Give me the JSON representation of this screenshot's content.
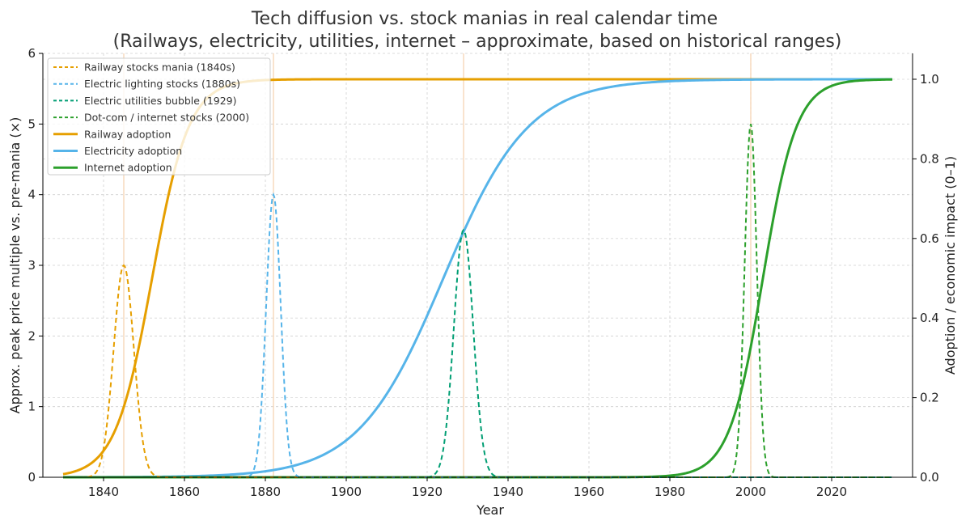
{
  "chart_data": {
    "type": "line",
    "title_line1": "Tech diffusion vs. stock manias in real calendar time",
    "title_line2": "(Railways, electricity, utilities, internet – approximate, based on historical ranges)",
    "xlabel": "Year",
    "ylabel_left": "Approx. peak price multiple vs. pre-mania (×)",
    "ylabel_right": "Adoption / economic impact (0–1)",
    "xlim": [
      1825,
      2040
    ],
    "ylim_left": [
      0,
      6
    ],
    "ylim_right": [
      0,
      1.065
    ],
    "x_ticks": [
      1840,
      1860,
      1880,
      1900,
      1920,
      1940,
      1960,
      1980,
      2000,
      2020
    ],
    "y_ticks_left": [
      0,
      1,
      2,
      3,
      4,
      5,
      6
    ],
    "y_ticks_right": [
      0.0,
      0.2,
      0.4,
      0.6,
      0.8,
      1.0
    ],
    "x_tick_labels": [
      "1840",
      "1860",
      "1880",
      "1900",
      "1920",
      "1940",
      "1960",
      "1980",
      "2000",
      "2020"
    ],
    "y_tick_labels_left": [
      "0",
      "1",
      "2",
      "3",
      "4",
      "5",
      "6"
    ],
    "y_tick_labels_right": [
      "0.0",
      "0.2",
      "0.4",
      "0.6",
      "0.8",
      "1.0"
    ],
    "grid": true,
    "legend_position": "upper-left",
    "mania_series": [
      {
        "name": "Railway stocks mania (1840s)",
        "color": "#E69F00",
        "peak_year": 1845,
        "peak_multiple": 3.0,
        "width_years": 2.5,
        "axis": "left",
        "style": "dashed"
      },
      {
        "name": "Electric lighting stocks (1880s)",
        "color": "#56B4E9",
        "peak_year": 1882,
        "peak_multiple": 4.0,
        "width_years": 1.8,
        "axis": "left",
        "style": "dashed"
      },
      {
        "name": "Electric utilities bubble (1929)",
        "color": "#009E73",
        "peak_year": 1929,
        "peak_multiple": 3.5,
        "width_years": 2.4,
        "axis": "left",
        "style": "dashed"
      },
      {
        "name": "Dot-com / internet stocks (2000)",
        "color": "#2CA02C",
        "peak_year": 2000,
        "peak_multiple": 5.0,
        "width_years": 1.5,
        "axis": "left",
        "style": "dashed"
      }
    ],
    "adoption_series": [
      {
        "name": "Railway adoption",
        "color": "#E69F00",
        "midpoint_year": 1852,
        "rate": 0.22,
        "axis": "right",
        "style": "solid"
      },
      {
        "name": "Electricity adoption",
        "color": "#56B4E9",
        "midpoint_year": 1924,
        "rate": 0.095,
        "axis": "right",
        "style": "solid"
      },
      {
        "name": "Internet adoption",
        "color": "#2CA02C",
        "midpoint_year": 2003,
        "rate": 0.24,
        "axis": "right",
        "style": "solid"
      }
    ],
    "x_range": [
      1830,
      2035
    ],
    "peak_marker_lines": [
      {
        "year": 1845,
        "color": "#F5CBA7"
      },
      {
        "year": 1882,
        "color": "#F5CBA7"
      },
      {
        "year": 1929,
        "color": "#F5CBA7"
      },
      {
        "year": 2000,
        "color": "#F5CBA7"
      }
    ]
  }
}
